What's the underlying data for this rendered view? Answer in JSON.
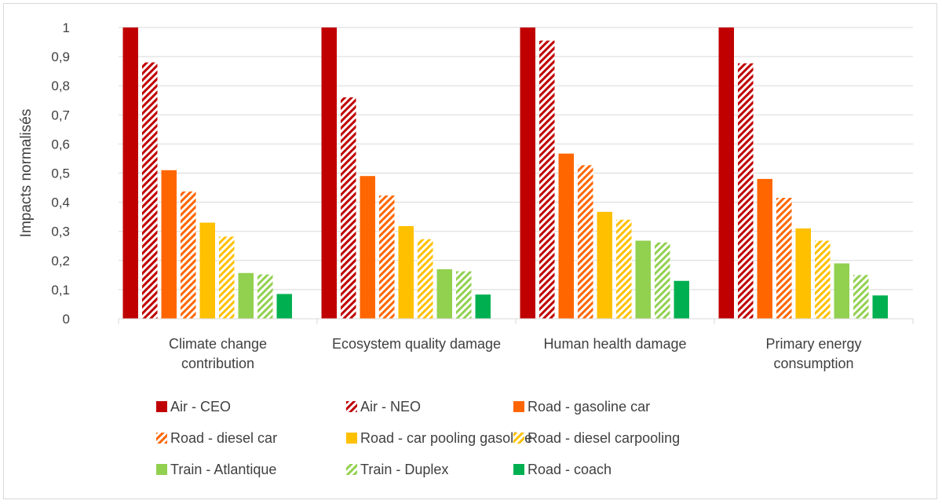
{
  "chart_data": {
    "type": "bar",
    "ylabel": "Impacts normalisés",
    "ylim": [
      0,
      1
    ],
    "ytick_step": 0.1,
    "ytick_labels": [
      "0",
      "0,1",
      "0,2",
      "0,3",
      "0,4",
      "0,5",
      "0,6",
      "0,7",
      "0,8",
      "0,9",
      "1"
    ],
    "grid": true,
    "legend_position": "bottom",
    "categories": [
      [
        "Climate change",
        "contribution"
      ],
      [
        "Ecosystem quality damage"
      ],
      [
        "Human health damage"
      ],
      [
        "Primary energy",
        "consumption"
      ]
    ],
    "series": [
      {
        "name": "Air - CEO",
        "color": "#c00000",
        "pattern": "solid",
        "values": [
          1.0,
          1.0,
          1.0,
          1.0
        ]
      },
      {
        "name": "Air - NEO",
        "color": "#c00000",
        "pattern": "hatched",
        "values": [
          0.88,
          0.76,
          0.955,
          0.877
        ]
      },
      {
        "name": "Road - gasoline car",
        "color": "#ff6600",
        "pattern": "solid",
        "values": [
          0.51,
          0.49,
          0.567,
          0.48
        ]
      },
      {
        "name": "Road - diesel car",
        "color": "#ff6600",
        "pattern": "hatched",
        "values": [
          0.437,
          0.423,
          0.527,
          0.415
        ]
      },
      {
        "name": "Road - car pooling gasoline",
        "color": "#ffc000",
        "pattern": "solid",
        "values": [
          0.33,
          0.318,
          0.367,
          0.31
        ]
      },
      {
        "name": "Road - diesel carpooling",
        "color": "#ffc000",
        "pattern": "hatched",
        "values": [
          0.282,
          0.273,
          0.34,
          0.268
        ]
      },
      {
        "name": "Train - Atlantique",
        "color": "#92d050",
        "pattern": "solid",
        "values": [
          0.157,
          0.17,
          0.268,
          0.19
        ]
      },
      {
        "name": "Train - Duplex",
        "color": "#92d050",
        "pattern": "hatched",
        "values": [
          0.152,
          0.163,
          0.262,
          0.15
        ]
      },
      {
        "name": "Road - coach",
        "color": "#00b050",
        "pattern": "solid",
        "values": [
          0.085,
          0.083,
          0.13,
          0.08
        ]
      }
    ]
  }
}
